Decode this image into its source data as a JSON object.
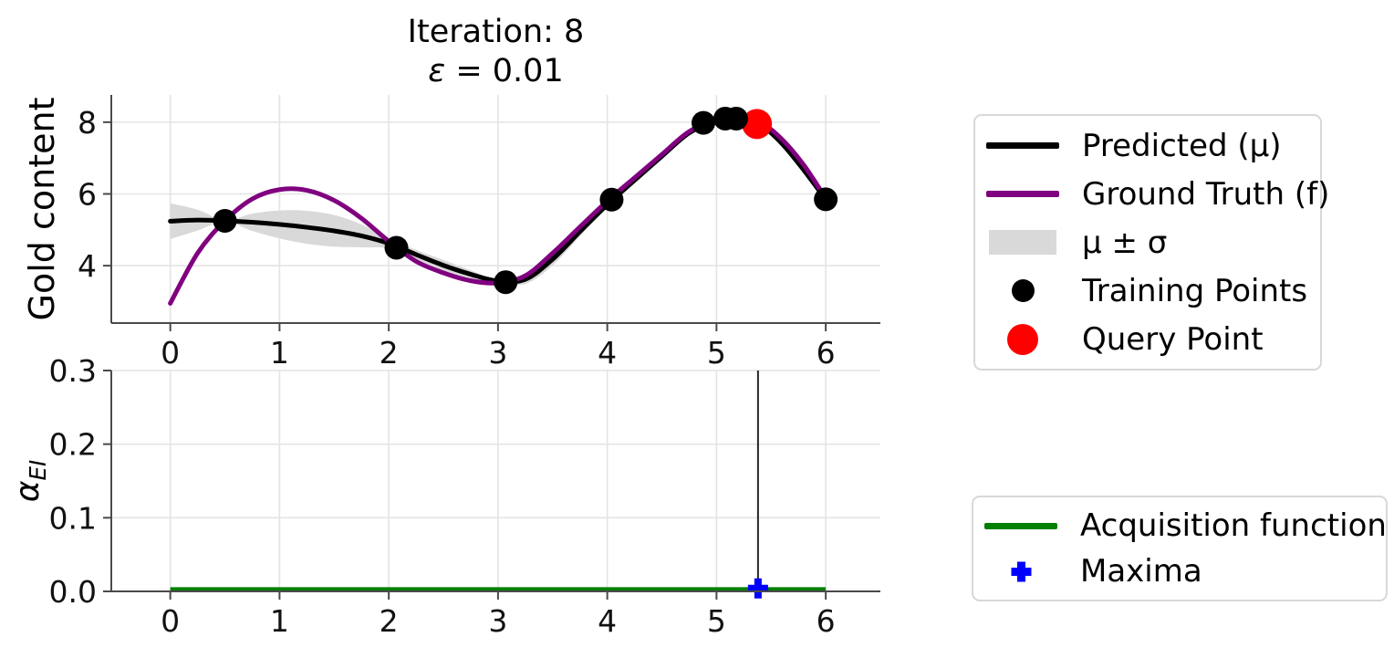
{
  "title": {
    "line1": "Iteration: 8",
    "epsilon": "ε",
    "epsilon_value": " = 0.01"
  },
  "legend_top": {
    "items": [
      {
        "label": "Predicted (μ)",
        "type": "line",
        "color": "#000000"
      },
      {
        "label": "Ground Truth (f)",
        "type": "line",
        "color": "#800080"
      },
      {
        "label": "μ ± σ",
        "type": "patch",
        "color": "#d9d9d9"
      },
      {
        "label": "Training Points",
        "type": "dot",
        "color": "#000000"
      },
      {
        "label": "Query Point",
        "type": "dot-large",
        "color": "#ff0000"
      }
    ]
  },
  "legend_bottom": {
    "items": [
      {
        "label": "Acquisition function",
        "type": "line",
        "color": "#008000"
      },
      {
        "label": "Maxima",
        "type": "plus",
        "color": "#0000ff"
      }
    ]
  },
  "chart_data": [
    {
      "type": "line",
      "title": "Iteration: 8\nε = 0.01",
      "ylabel": "Gold content",
      "xlim": [
        -0.54,
        6.5
      ],
      "ylim": [
        2.4,
        8.76
      ],
      "xticks": [
        0,
        1,
        2,
        3,
        4,
        5,
        6
      ],
      "xticklabels": [
        "0",
        "1",
        "2",
        "3",
        "4",
        "5",
        "6"
      ],
      "yticks": [
        4,
        6,
        8
      ],
      "yticklabels": [
        "4",
        "6",
        "8"
      ],
      "grid": true,
      "x": [
        0,
        0.25,
        0.5,
        0.75,
        1,
        1.25,
        1.5,
        1.75,
        2,
        2.25,
        2.5,
        2.75,
        3,
        3.25,
        3.5,
        3.75,
        4,
        4.25,
        4.5,
        4.75,
        5,
        5.2,
        5.4,
        5.6,
        5.8,
        6
      ],
      "series": [
        {
          "name": "Predicted (μ)",
          "color": "#000000",
          "values": [
            5.24,
            5.27,
            5.25,
            5.21,
            5.15,
            5.07,
            4.97,
            4.83,
            4.62,
            4.31,
            4.01,
            3.76,
            3.57,
            3.62,
            4.18,
            4.95,
            5.7,
            6.38,
            7.05,
            7.7,
            8.04,
            8.1,
            7.93,
            7.4,
            6.66,
            5.84
          ]
        },
        {
          "name": "Ground Truth (f)",
          "color": "#800080",
          "values": [
            2.95,
            4.35,
            5.25,
            5.86,
            6.12,
            6.1,
            5.82,
            5.32,
            4.68,
            4.12,
            3.8,
            3.58,
            3.52,
            3.72,
            4.35,
            5.08,
            5.8,
            6.45,
            7.1,
            7.74,
            8.06,
            8.12,
            8.0,
            7.52,
            6.8,
            5.88
          ]
        }
      ],
      "sigma_band": {
        "name": "μ ± σ",
        "color": "#d9d9d9",
        "sigma": [
          0.5,
          0.29,
          0.02,
          0.24,
          0.39,
          0.46,
          0.44,
          0.32,
          0.14,
          0.13,
          0.15,
          0.11,
          0.02,
          0.13,
          0.17,
          0.13,
          0.04,
          0.06,
          0.08,
          0.05,
          0.02,
          0.02,
          0.04,
          0.07,
          0.06,
          0.02
        ]
      },
      "training_points": [
        [
          0.5,
          5.25
        ],
        [
          2.07,
          4.5
        ],
        [
          3.07,
          3.54
        ],
        [
          4.04,
          5.84
        ],
        [
          4.88,
          7.98
        ],
        [
          5.08,
          8.1
        ],
        [
          5.18,
          8.1
        ],
        [
          6.0,
          5.85
        ]
      ],
      "query_point": [
        5.37,
        7.95
      ]
    },
    {
      "type": "line",
      "ylabel": "α_EI",
      "ylabel_main": "α",
      "ylabel_sub": "EI",
      "xlim": [
        -0.54,
        6.5
      ],
      "ylim": [
        0,
        0.3
      ],
      "xticks": [
        0,
        1,
        2,
        3,
        4,
        5,
        6
      ],
      "xticklabels": [
        "0",
        "1",
        "2",
        "3",
        "4",
        "5",
        "6"
      ],
      "yticks": [
        0,
        0.1,
        0.2,
        0.3
      ],
      "yticklabels": [
        "0.0",
        "0.1",
        "0.2",
        "0.3"
      ],
      "grid": true,
      "series": [
        {
          "name": "Acquisition function",
          "color": "#008000",
          "x": [
            0,
            6
          ],
          "values": [
            0.003,
            0.003
          ]
        }
      ],
      "maxima": {
        "x": 5.38,
        "y": 0.004
      },
      "vline_x": 5.38
    }
  ]
}
